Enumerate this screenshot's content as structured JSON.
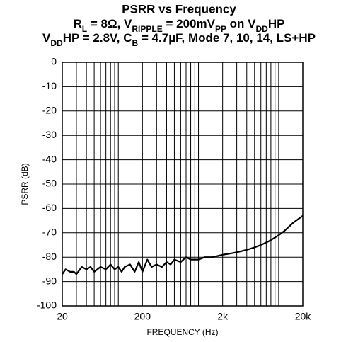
{
  "chart_data": {
    "type": "line",
    "title": "PSRR vs Frequency",
    "subtitle": [
      [
        {
          "text": "R"
        },
        {
          "text": "L",
          "subscript": true
        },
        {
          "text": " = 8Ω, V"
        },
        {
          "text": "RIPPLE",
          "subscript": true
        },
        {
          "text": " = 200mV"
        },
        {
          "text": "PP",
          "subscript": true
        },
        {
          "text": " on V"
        },
        {
          "text": "DD",
          "subscript": true
        },
        {
          "text": "HP"
        }
      ],
      [
        {
          "text": "V"
        },
        {
          "text": "DD",
          "subscript": true
        },
        {
          "text": "HP = 2.8V, C"
        },
        {
          "text": "B",
          "subscript": true
        },
        {
          "text": " = 4.7µF, Mode 7, 10, 14, LS+HP"
        }
      ]
    ],
    "xlabel": "FREQUENCY (Hz)",
    "ylabel": "PSRR (dB)",
    "xscale": "log",
    "grid": true,
    "xlim": [
      20,
      20000
    ],
    "ylim": [
      -100,
      0
    ],
    "xticks": [
      20,
      200,
      {
        "value": 2000,
        "label": "2k"
      },
      {
        "value": 20000,
        "label": "20k"
      }
    ],
    "xminorticks": [
      30,
      40,
      50,
      60,
      70,
      80,
      90,
      100,
      300,
      400,
      500,
      600,
      700,
      800,
      900,
      1000,
      3000,
      4000,
      5000,
      6000,
      7000,
      8000,
      9000,
      10000
    ],
    "yticks": [
      0,
      -10,
      -20,
      -30,
      -40,
      -50,
      -60,
      -70,
      -80,
      -90,
      -100
    ],
    "series": [
      {
        "color": "#000000",
        "x": [
          20,
          22,
          25,
          28,
          30,
          35,
          40,
          45,
          50,
          60,
          70,
          80,
          90,
          100,
          110,
          120,
          140,
          160,
          180,
          200,
          230,
          260,
          300,
          350,
          400,
          450,
          500,
          600,
          700,
          800,
          1000,
          1200,
          1500,
          2000,
          2500,
          3000,
          4000,
          5000,
          6000,
          7000,
          8000,
          10000,
          12000,
          15000,
          20000
        ],
        "values": [
          -87,
          -85,
          -86,
          -86,
          -87,
          -84,
          -85,
          -84,
          -86,
          -84,
          -85,
          -83,
          -85,
          -84,
          -86,
          -84,
          -83,
          -86,
          -82,
          -86,
          -81,
          -84,
          -83,
          -84,
          -82,
          -83,
          -81,
          -82,
          -80,
          -81,
          -81,
          -80,
          -80,
          -79,
          -78.5,
          -78,
          -77,
          -76,
          -75,
          -74,
          -73,
          -71,
          -69,
          -66,
          -63
        ]
      }
    ]
  }
}
